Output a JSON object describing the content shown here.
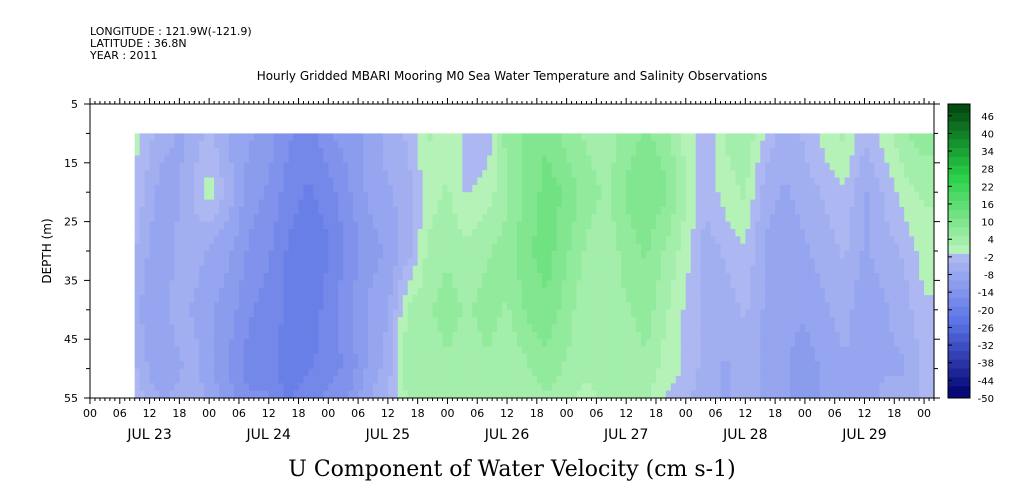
{
  "header": {
    "longitude": "LONGITUDE : 121.9W(-121.9)",
    "latitude": "LATITUDE : 36.8N",
    "year": "YEAR : 2011"
  },
  "chart_data": {
    "type": "heatmap",
    "title": "Hourly Gridded MBARI Mooring M0 Sea Water Temperature and Salinity Observations",
    "subtitle": "U Component of Water Velocity (cm s-1)",
    "ylabel": "DEPTH (m)",
    "x_range_hours": [
      0,
      170
    ],
    "data_start_hour": 9,
    "ylim": [
      5,
      55
    ],
    "y_inverted": true,
    "y_ticks": [
      5,
      15,
      25,
      35,
      45,
      55
    ],
    "x_hour_labels": [
      "00",
      "06",
      "12",
      "18",
      "00",
      "06",
      "12",
      "18",
      "00",
      "06",
      "12",
      "18",
      "00",
      "06",
      "12",
      "18",
      "00",
      "06",
      "12",
      "18",
      "00",
      "06",
      "12",
      "18",
      "00",
      "06",
      "12",
      "18",
      "00"
    ],
    "day_labels": [
      "JUL 23",
      "JUL 24",
      "JUL 25",
      "JUL 26",
      "JUL 27",
      "JUL 28",
      "JUL 29"
    ],
    "depths_m": [
      10,
      20,
      30,
      40,
      50,
      55
    ],
    "time_nodes_hours": [
      9,
      12,
      15,
      18,
      21,
      24,
      28,
      32,
      36,
      40,
      44,
      48,
      52,
      56,
      60,
      64,
      68,
      72,
      76,
      80,
      84,
      88,
      92,
      96,
      100,
      104,
      108,
      112,
      116,
      120,
      124,
      128,
      132,
      136,
      140,
      144,
      148,
      152,
      156,
      160,
      164,
      168
    ],
    "u_velocity_cm_s": [
      [
        0,
        -4,
        -6,
        -8,
        -6,
        -4,
        -8,
        -10,
        -12,
        -16,
        -18,
        -14,
        -12,
        -10,
        -6,
        -4,
        2,
        0,
        -2,
        -4,
        6,
        8,
        10,
        6,
        4,
        2,
        6,
        8,
        6,
        0,
        -4,
        2,
        4,
        -2,
        -6,
        -4,
        0,
        2,
        -4,
        0,
        4,
        6
      ],
      [
        -2,
        -6,
        -10,
        -8,
        -4,
        0,
        -6,
        -12,
        -14,
        -18,
        -20,
        -18,
        -14,
        -10,
        -8,
        -6,
        0,
        2,
        -2,
        0,
        4,
        8,
        12,
        10,
        6,
        4,
        8,
        10,
        8,
        2,
        -4,
        0,
        2,
        -6,
        -8,
        -6,
        -4,
        -2,
        -8,
        -4,
        0,
        2
      ],
      [
        -4,
        -8,
        -10,
        -6,
        -6,
        -8,
        -10,
        -14,
        -16,
        -20,
        -22,
        -20,
        -16,
        -12,
        -10,
        -6,
        2,
        4,
        2,
        4,
        6,
        10,
        12,
        8,
        4,
        2,
        6,
        8,
        4,
        0,
        -6,
        -4,
        -2,
        -8,
        -10,
        -8,
        -6,
        -4,
        -8,
        -6,
        -4,
        0
      ],
      [
        -6,
        -10,
        -8,
        -6,
        -8,
        -10,
        -12,
        -16,
        -18,
        -20,
        -22,
        -18,
        -14,
        -10,
        -8,
        2,
        4,
        6,
        4,
        6,
        4,
        8,
        10,
        6,
        2,
        4,
        4,
        6,
        2,
        -2,
        -6,
        -6,
        -4,
        -8,
        -10,
        -10,
        -8,
        -6,
        -10,
        -8,
        -6,
        -2
      ],
      [
        -4,
        -8,
        -10,
        -8,
        -6,
        -10,
        -14,
        -18,
        -18,
        -22,
        -20,
        -18,
        -16,
        -10,
        -6,
        4,
        2,
        4,
        2,
        4,
        2,
        4,
        6,
        4,
        2,
        4,
        2,
        4,
        0,
        -2,
        -6,
        -8,
        -6,
        -8,
        -10,
        -12,
        -10,
        -8,
        -10,
        -8,
        -8,
        -4
      ],
      [
        -2,
        -6,
        -8,
        -6,
        -6,
        -8,
        -12,
        -16,
        -16,
        -20,
        -18,
        -16,
        -14,
        -8,
        -4,
        2,
        2,
        2,
        2,
        2,
        2,
        2,
        4,
        2,
        0,
        2,
        2,
        2,
        -2,
        -4,
        -6,
        -8,
        -6,
        -8,
        -10,
        -12,
        -10,
        -8,
        -10,
        -6,
        -6,
        -4
      ]
    ],
    "colorbar_ticks": [
      46,
      40,
      34,
      28,
      22,
      16,
      10,
      4,
      -2,
      -8,
      -14,
      -20,
      -26,
      -32,
      -38,
      -44,
      -50
    ],
    "colorbar_range": [
      -50,
      50
    ],
    "colors": {
      "neg_light": "#b8c2f4",
      "neg_mid": "#5a72e6",
      "neg_dark": "#000070",
      "pos_light": "#b4f2b8",
      "pos_mid": "#28d048",
      "pos_dark": "#00420c"
    }
  }
}
